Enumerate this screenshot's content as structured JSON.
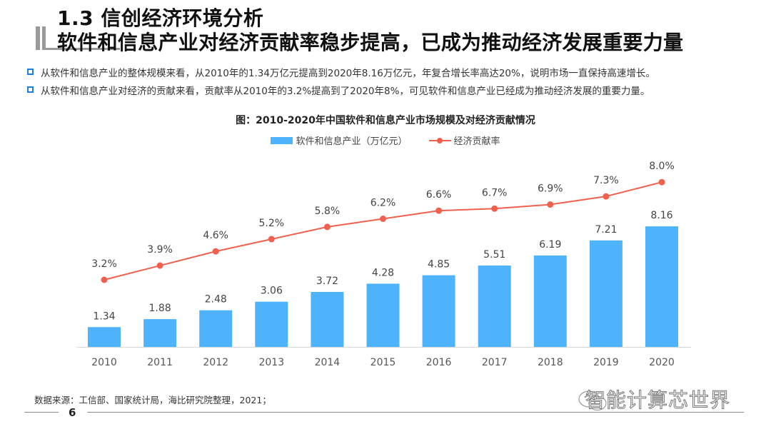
{
  "header": {
    "section_title": "1.3 信创经济环境分析",
    "headline": "软件和信息产业对经济贡献率稳步提高，已成为推动经济发展重要力量"
  },
  "bullets": [
    "从软件和信息产业的整体规模来看，从2010年的1.34万亿元提高到2020年8.16万亿元，年复合增长率高达20%，说明市场一直保持高速增长。",
    "从软件和信息产业对经济的贡献来看，贡献率从2010年的3.2%提高到了2020年8%，可见软件和信息产业已经成为推动经济发展的重要力量。"
  ],
  "chart_data": {
    "type": "bar",
    "title": "图：2010-2020年中国软件和信息产业市场规模及对经济贡献情况",
    "categories": [
      "2010",
      "2011",
      "2012",
      "2013",
      "2014",
      "2015",
      "2016",
      "2017",
      "2018",
      "2019",
      "2020"
    ],
    "series": [
      {
        "name": "软件和信息产业（万亿元）",
        "type": "bar",
        "color": "#4fb3fb",
        "values": [
          1.34,
          1.88,
          2.48,
          3.06,
          3.72,
          4.28,
          4.85,
          5.51,
          6.19,
          7.21,
          8.16
        ],
        "labels": [
          "1.34",
          "1.88",
          "2.48",
          "3.06",
          "3.72",
          "4.28",
          "4.85",
          "5.51",
          "6.19",
          "7.21",
          "8.16"
        ]
      },
      {
        "name": "经济贡献率",
        "type": "line",
        "color": "#f0604e",
        "values": [
          3.2,
          3.9,
          4.6,
          5.2,
          5.8,
          6.2,
          6.6,
          6.7,
          6.9,
          7.3,
          8.0
        ],
        "labels": [
          "3.2%",
          "3.9%",
          "4.6%",
          "5.2%",
          "5.8%",
          "6.2%",
          "6.6%",
          "6.7%",
          "6.9%",
          "7.3%",
          "8.0%"
        ]
      }
    ],
    "legend": "top-center",
    "grid": false,
    "xlabel": "",
    "ylabel": ""
  },
  "footer": {
    "source": "数据来源：工信部、国家统计局，海比研究院整理，2021；",
    "page_number": "6",
    "brand": "智能计算芯世界"
  }
}
